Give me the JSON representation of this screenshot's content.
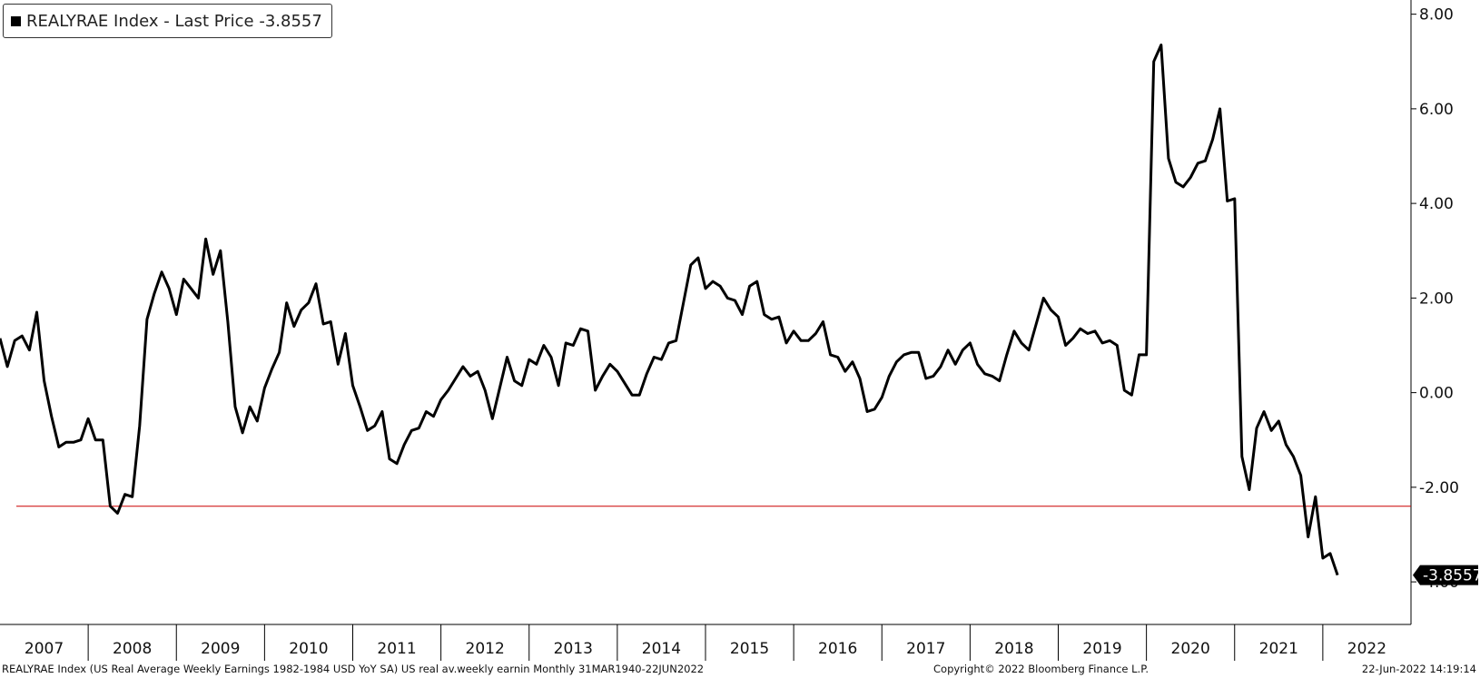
{
  "legend": {
    "label": "REALYRAE Index - Last Price -3.8557"
  },
  "footer": {
    "left": "REALYRAE Index (US Real Average Weekly Earnings 1982-1984 USD YoY SA) US real av.weekly earnin  Monthly 31MAR1940-22JUN2022",
    "center": "Copyright© 2022 Bloomberg Finance L.P.",
    "right": "22-Jun-2022 14:19:14"
  },
  "colors": {
    "line": "#000000",
    "reference_line": "#cc0000",
    "last_value_badge": "#000000"
  },
  "chart_data": {
    "type": "line",
    "title": "",
    "xlabel": "",
    "ylabel": "",
    "ylim": [
      -4.9,
      8.3
    ],
    "x_categories": [
      "2007",
      "2008",
      "2009",
      "2010",
      "2011",
      "2012",
      "2013",
      "2014",
      "2015",
      "2016",
      "2017",
      "2018",
      "2019",
      "2020",
      "2021",
      "2022"
    ],
    "y_ticks": [
      "8.00",
      "6.00",
      "4.00",
      "2.00",
      "0.00",
      "-2.00",
      "-4.00"
    ],
    "reference_line": -2.4,
    "last_value_label": "-3.8557",
    "series": [
      {
        "name": "REALYRAE Index - Last Price",
        "start": "2007-01",
        "frequency": "monthly",
        "values": [
          1.15,
          0.55,
          1.1,
          1.2,
          0.9,
          1.7,
          0.25,
          -0.5,
          -1.15,
          -1.05,
          -1.05,
          -1.0,
          -0.55,
          -1.0,
          -1.0,
          -2.4,
          -2.55,
          -2.15,
          -2.2,
          -0.7,
          1.55,
          2.1,
          2.55,
          2.2,
          1.65,
          2.4,
          2.2,
          2.0,
          3.25,
          2.5,
          3.0,
          1.5,
          -0.3,
          -0.85,
          -0.3,
          -0.6,
          0.1,
          0.5,
          0.85,
          1.9,
          1.4,
          1.75,
          1.9,
          2.3,
          1.45,
          1.5,
          0.6,
          1.25,
          0.15,
          -0.3,
          -0.8,
          -0.7,
          -0.4,
          -1.4,
          -1.5,
          -1.1,
          -0.8,
          -0.75,
          -0.4,
          -0.5,
          -0.15,
          0.05,
          0.3,
          0.55,
          0.35,
          0.45,
          0.05,
          -0.55,
          0.1,
          0.75,
          0.25,
          0.15,
          0.7,
          0.6,
          1.0,
          0.75,
          0.15,
          1.05,
          1.0,
          1.35,
          1.3,
          0.05,
          0.35,
          0.6,
          0.45,
          0.2,
          -0.05,
          -0.05,
          0.4,
          0.75,
          0.7,
          1.05,
          1.1,
          1.9,
          2.7,
          2.85,
          2.2,
          2.35,
          2.25,
          2.0,
          1.95,
          1.65,
          2.25,
          2.35,
          1.65,
          1.55,
          1.6,
          1.05,
          1.3,
          1.1,
          1.1,
          1.25,
          1.5,
          0.8,
          0.75,
          0.45,
          0.65,
          0.3,
          -0.4,
          -0.35,
          -0.1,
          0.35,
          0.65,
          0.8,
          0.85,
          0.85,
          0.3,
          0.35,
          0.55,
          0.9,
          0.6,
          0.9,
          1.05,
          0.6,
          0.4,
          0.35,
          0.25,
          0.8,
          1.3,
          1.05,
          0.9,
          1.45,
          2.0,
          1.75,
          1.6,
          1.0,
          1.15,
          1.35,
          1.25,
          1.3,
          1.05,
          1.1,
          1.0,
          0.05,
          -0.05,
          0.8,
          0.8,
          7.0,
          7.35,
          4.95,
          4.45,
          4.35,
          4.55,
          4.85,
          4.9,
          5.35,
          6.0,
          4.05,
          4.1,
          -1.35,
          -2.05,
          -0.75,
          -0.4,
          -0.8,
          -0.6,
          -1.1,
          -1.35,
          -1.75,
          -3.05,
          -2.2,
          -3.5,
          -3.4,
          -3.8557
        ]
      }
    ]
  }
}
